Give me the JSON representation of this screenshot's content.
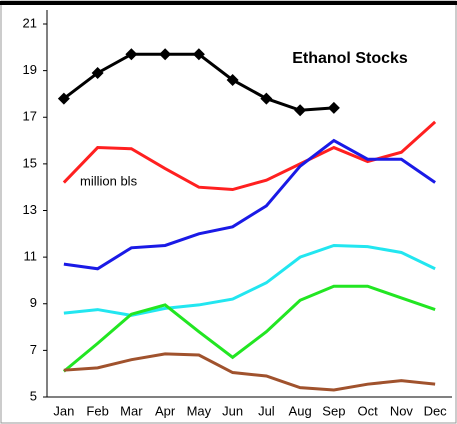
{
  "chart_data": {
    "type": "line",
    "title": "Ethanol Stocks",
    "annotation": "million bls",
    "categories": [
      "Jan",
      "Feb",
      "Mar",
      "Apr",
      "May",
      "Jun",
      "Jul",
      "Aug",
      "Sep",
      "Oct",
      "Nov",
      "Dec"
    ],
    "series": [
      {
        "color": "#000000",
        "marker": "diamond",
        "values": [
          17.8,
          18.9,
          19.7,
          19.7,
          19.7,
          18.6,
          17.8,
          17.3,
          17.4,
          null,
          null,
          null
        ]
      },
      {
        "color": "#ff2020",
        "values": [
          14.2,
          15.7,
          15.65,
          14.8,
          14.0,
          13.9,
          14.3,
          15.0,
          15.7,
          15.1,
          15.5,
          16.8
        ]
      },
      {
        "color": "#1a1ae6",
        "values": [
          10.7,
          10.5,
          11.4,
          11.5,
          12.0,
          12.3,
          13.2,
          14.9,
          16.0,
          15.2,
          15.2,
          14.2
        ]
      },
      {
        "color": "#22e6f0",
        "values": [
          8.6,
          8.75,
          8.5,
          8.8,
          8.95,
          9.2,
          9.9,
          11.0,
          11.5,
          11.45,
          11.2,
          10.5
        ]
      },
      {
        "color": "#22e622",
        "values": [
          6.1,
          7.3,
          8.55,
          8.95,
          7.8,
          6.7,
          7.8,
          9.15,
          9.75,
          9.75,
          9.25,
          8.75
        ]
      },
      {
        "color": "#a0522d",
        "values": [
          6.15,
          6.25,
          6.6,
          6.85,
          6.8,
          6.05,
          5.9,
          5.4,
          5.3,
          5.55,
          5.7,
          5.55
        ]
      }
    ],
    "ylim": [
      5,
      21
    ],
    "yticks": [
      5,
      7,
      9,
      11,
      13,
      15,
      17,
      19,
      21
    ],
    "grid": false
  }
}
